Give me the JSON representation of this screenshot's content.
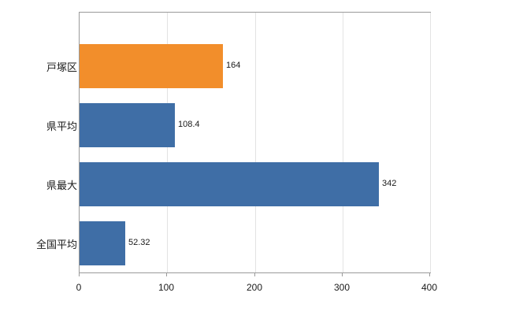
{
  "chart_data": {
    "type": "bar",
    "orientation": "horizontal",
    "title": "",
    "xlabel": "",
    "ylabel": "",
    "categories": [
      "戸塚区",
      "県平均",
      "県最大",
      "全国平均"
    ],
    "category_keys": [
      "totsuka-ward",
      "prefecture-average",
      "prefecture-max",
      "national-average"
    ],
    "values": [
      164,
      108.4,
      342,
      52.32
    ],
    "value_labels": [
      "164",
      "108.4",
      "342",
      "52.32"
    ],
    "bar_colors": [
      "#f28e2b",
      "#3f6ea6",
      "#3f6ea6",
      "#3f6ea6"
    ],
    "xlim": [
      0,
      400
    ],
    "x_ticks": [
      0,
      100,
      200,
      300,
      400
    ],
    "x_tick_labels": [
      "0",
      "100",
      "200",
      "300",
      "400"
    ],
    "grid": true,
    "legend_position": "none",
    "colors": {
      "highlight_orange": "#f28e2b",
      "series_blue": "#3f6ea6",
      "gridline": "#e3e3e3",
      "plot_border": "#9a9a9a",
      "text": "#1a1a1a",
      "background": "#ffffff"
    }
  }
}
